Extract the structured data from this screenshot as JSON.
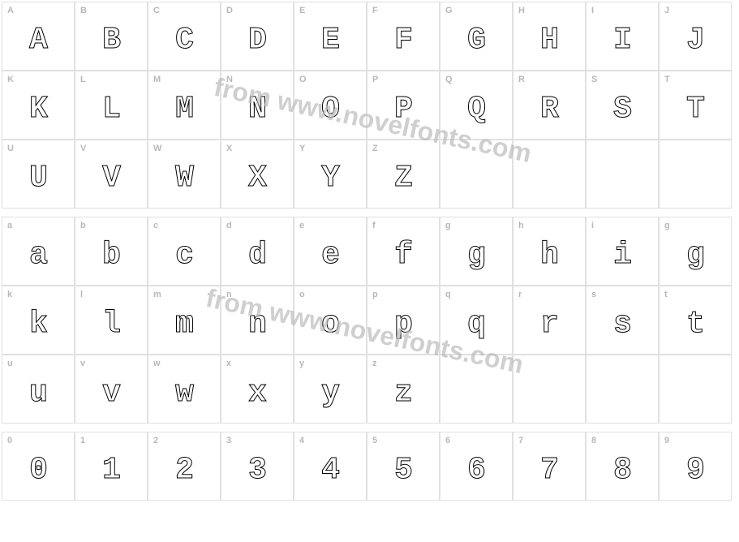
{
  "watermark_text": "from www.novelfonts.com",
  "grid_cell_width": 90,
  "grid_cell_height": 85,
  "border_color": "#e0e0e0",
  "label_color": "#b8b8b8",
  "glyph_color": "#000000",
  "watermark_color": "#bcbcbc",
  "sections": [
    {
      "rows": [
        {
          "cells": [
            {
              "label": "A",
              "glyph": "A"
            },
            {
              "label": "B",
              "glyph": "B"
            },
            {
              "label": "C",
              "glyph": "C"
            },
            {
              "label": "D",
              "glyph": "D"
            },
            {
              "label": "E",
              "glyph": "E"
            },
            {
              "label": "F",
              "glyph": "F"
            },
            {
              "label": "G",
              "glyph": "G"
            },
            {
              "label": "H",
              "glyph": "H"
            },
            {
              "label": "I",
              "glyph": "I"
            },
            {
              "label": "J",
              "glyph": "J"
            }
          ]
        },
        {
          "cells": [
            {
              "label": "K",
              "glyph": "K"
            },
            {
              "label": "L",
              "glyph": "L"
            },
            {
              "label": "M",
              "glyph": "M"
            },
            {
              "label": "N",
              "glyph": "N"
            },
            {
              "label": "O",
              "glyph": "O"
            },
            {
              "label": "P",
              "glyph": "P"
            },
            {
              "label": "Q",
              "glyph": "Q"
            },
            {
              "label": "R",
              "glyph": "R"
            },
            {
              "label": "S",
              "glyph": "S"
            },
            {
              "label": "T",
              "glyph": "T"
            }
          ]
        },
        {
          "cells": [
            {
              "label": "U",
              "glyph": "U"
            },
            {
              "label": "V",
              "glyph": "V"
            },
            {
              "label": "W",
              "glyph": "W"
            },
            {
              "label": "X",
              "glyph": "X"
            },
            {
              "label": "Y",
              "glyph": "Y"
            },
            {
              "label": "Z",
              "glyph": "Z"
            },
            {
              "empty": true
            },
            {
              "empty": true
            },
            {
              "empty": true
            },
            {
              "empty": true
            }
          ]
        }
      ]
    },
    {
      "rows": [
        {
          "cells": [
            {
              "label": "a",
              "glyph": "a"
            },
            {
              "label": "b",
              "glyph": "b"
            },
            {
              "label": "c",
              "glyph": "c"
            },
            {
              "label": "d",
              "glyph": "d"
            },
            {
              "label": "e",
              "glyph": "e"
            },
            {
              "label": "f",
              "glyph": "f"
            },
            {
              "label": "g",
              "glyph": "g"
            },
            {
              "label": "h",
              "glyph": "h"
            },
            {
              "label": "i",
              "glyph": "i"
            },
            {
              "label": "g",
              "glyph": "g"
            }
          ]
        },
        {
          "cells": [
            {
              "label": "k",
              "glyph": "k"
            },
            {
              "label": "l",
              "glyph": "l"
            },
            {
              "label": "m",
              "glyph": "m"
            },
            {
              "label": "n",
              "glyph": "n"
            },
            {
              "label": "o",
              "glyph": "o"
            },
            {
              "label": "p",
              "glyph": "p"
            },
            {
              "label": "q",
              "glyph": "q"
            },
            {
              "label": "r",
              "glyph": "r"
            },
            {
              "label": "s",
              "glyph": "s"
            },
            {
              "label": "t",
              "glyph": "t"
            }
          ]
        },
        {
          "cells": [
            {
              "label": "u",
              "glyph": "u"
            },
            {
              "label": "v",
              "glyph": "v"
            },
            {
              "label": "w",
              "glyph": "w"
            },
            {
              "label": "x",
              "glyph": "x"
            },
            {
              "label": "y",
              "glyph": "y"
            },
            {
              "label": "z",
              "glyph": "z"
            },
            {
              "empty": true
            },
            {
              "empty": true
            },
            {
              "empty": true
            },
            {
              "empty": true
            }
          ]
        }
      ]
    },
    {
      "rows": [
        {
          "cells": [
            {
              "label": "0",
              "glyph": "0"
            },
            {
              "label": "1",
              "glyph": "1"
            },
            {
              "label": "2",
              "glyph": "2"
            },
            {
              "label": "3",
              "glyph": "3"
            },
            {
              "label": "4",
              "glyph": "4"
            },
            {
              "label": "5",
              "glyph": "5"
            },
            {
              "label": "6",
              "glyph": "6"
            },
            {
              "label": "7",
              "glyph": "7"
            },
            {
              "label": "8",
              "glyph": "8"
            },
            {
              "label": "9",
              "glyph": "9"
            }
          ]
        }
      ]
    }
  ]
}
